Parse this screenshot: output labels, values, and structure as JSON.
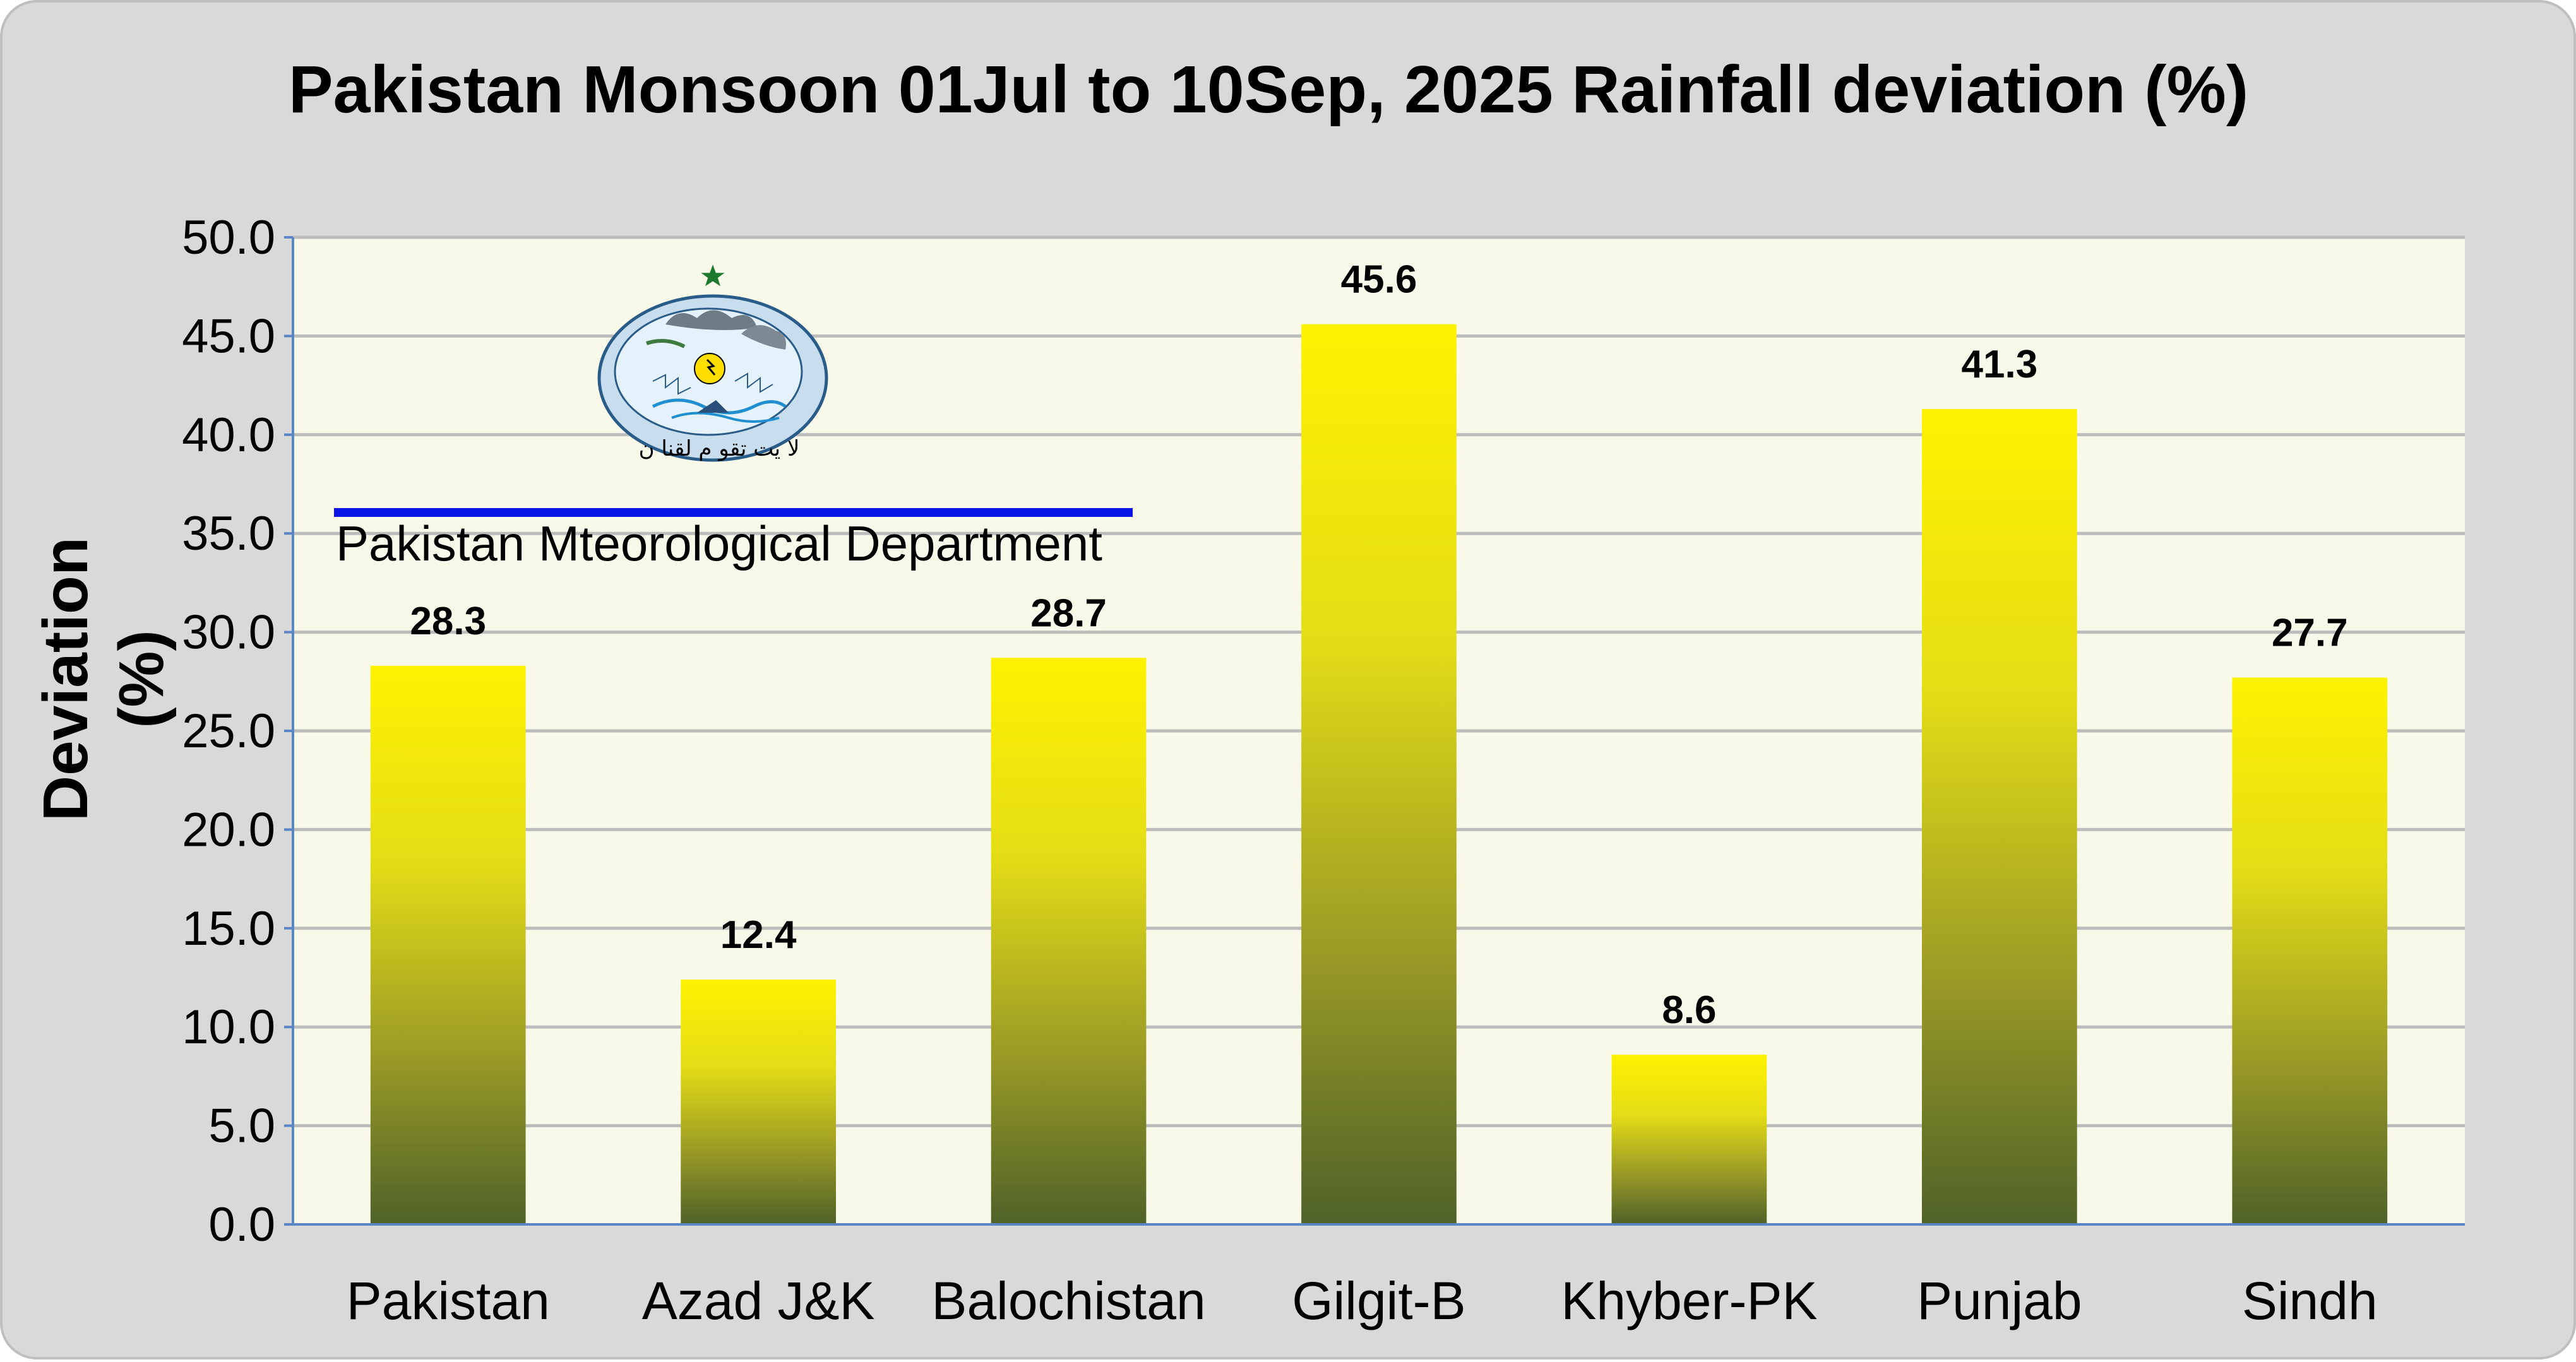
{
  "chart_data": {
    "type": "bar",
    "title": "Pakistan Monsoon 01Jul to 10Sep, 2025 Rainfall deviation (%)",
    "xlabel": "",
    "ylabel": "Deviation (%)",
    "categories": [
      "Pakistan",
      "Azad J&K",
      "Balochistan",
      "Gilgit-B",
      "Khyber-PK",
      "Punjab",
      "Sindh"
    ],
    "values": [
      28.3,
      12.4,
      28.7,
      45.6,
      8.6,
      41.3,
      27.7
    ],
    "data_labels": [
      "28.3",
      "12.4",
      "28.7",
      "45.6",
      "8.6",
      "41.3",
      "27.7"
    ],
    "ylim": [
      0,
      50
    ],
    "yticks": [
      "0.0",
      "5.0",
      "10.0",
      "15.0",
      "20.0",
      "25.0",
      "30.0",
      "35.0",
      "40.0",
      "45.0",
      "50.0"
    ],
    "grid": true,
    "legend": "none",
    "colors": {
      "bar_top": "#fff200",
      "bar_mid": "#c8c21c",
      "bar_bottom": "#4f6228",
      "plot_background": "#f8f9e8",
      "frame_background": "#d9d9d9",
      "gridline": "#bcbcbc"
    }
  },
  "watermark": {
    "organization": "Pakistan Mteorological Department",
    "logo_icon": "pmd-logo-icon",
    "logo_text": "لا یت تقو م لقنا ن"
  }
}
